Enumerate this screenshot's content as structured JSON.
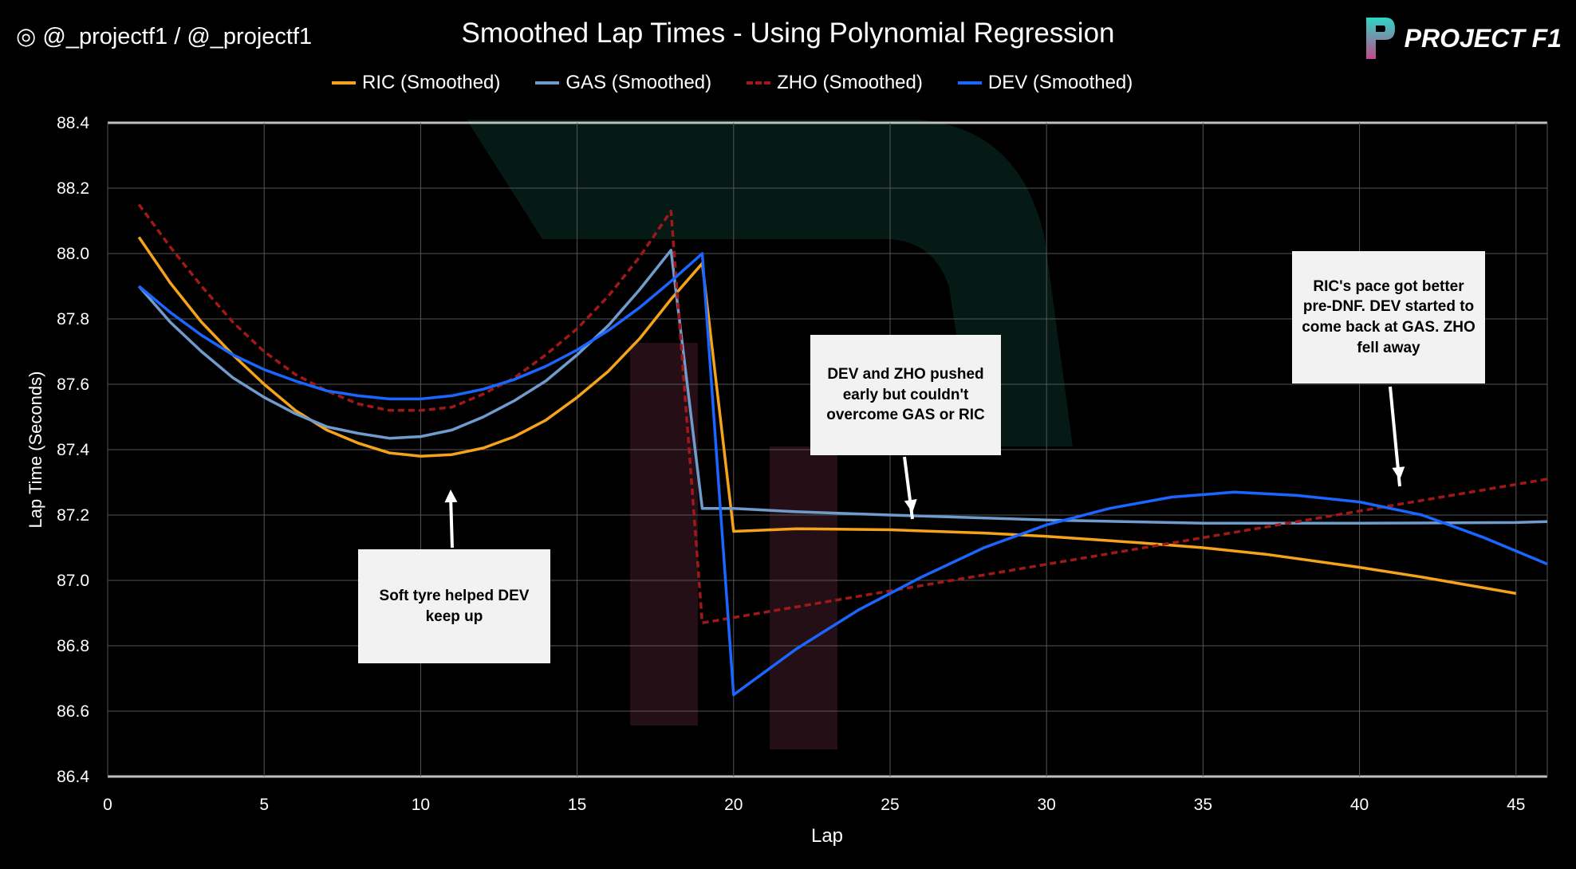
{
  "header": {
    "handle": "@_projectf1 / @_projectf1",
    "instagram_icon": "instagram-icon",
    "twitter_icon": "twitter-icon",
    "logo_text": "PROJECT F1"
  },
  "chart_data": {
    "type": "line",
    "title": "Smoothed Lap Times - Using Polynomial Regression",
    "xlabel": "Lap",
    "ylabel": "Lap Time (Seconds)",
    "xlim": [
      0,
      46
    ],
    "ylim": [
      86.4,
      88.4
    ],
    "xticks": [
      "0",
      "5",
      "10",
      "15",
      "20",
      "25",
      "30",
      "35",
      "40",
      "45"
    ],
    "yticks": [
      "86.4",
      "86.6",
      "86.8",
      "87.0",
      "87.2",
      "87.4",
      "87.6",
      "87.8",
      "88.0",
      "88.2",
      "88.4"
    ],
    "grid": true,
    "legend_position": "top",
    "series": [
      {
        "name": "RIC (Smoothed)",
        "color": "#f5a31a",
        "dash": false,
        "x": [
          1,
          2,
          3,
          4,
          5,
          6,
          7,
          8,
          9,
          10,
          11,
          12,
          13,
          14,
          15,
          16,
          17,
          18,
          19,
          20,
          22,
          25,
          28,
          30,
          33,
          35,
          37,
          40,
          42,
          45
        ],
        "y": [
          88.05,
          87.91,
          87.79,
          87.69,
          87.6,
          87.52,
          87.46,
          87.42,
          87.39,
          87.38,
          87.385,
          87.405,
          87.44,
          87.49,
          87.56,
          87.64,
          87.74,
          87.86,
          87.97,
          87.15,
          87.158,
          87.155,
          87.145,
          87.135,
          87.115,
          87.1,
          87.08,
          87.04,
          87.01,
          86.96
        ]
      },
      {
        "name": "GAS (Smoothed)",
        "color": "#6f9ccc",
        "dash": false,
        "x": [
          1,
          2,
          3,
          4,
          5,
          6,
          7,
          8,
          9,
          10,
          11,
          12,
          13,
          14,
          15,
          16,
          17,
          18,
          19,
          20,
          22,
          25,
          30,
          35,
          40,
          45,
          46
        ],
        "y": [
          87.9,
          87.79,
          87.7,
          87.62,
          87.56,
          87.51,
          87.47,
          87.45,
          87.435,
          87.44,
          87.46,
          87.5,
          87.55,
          87.61,
          87.69,
          87.78,
          87.89,
          88.01,
          87.22,
          87.22,
          87.21,
          87.2,
          87.185,
          87.175,
          87.175,
          87.177,
          87.18
        ]
      },
      {
        "name": "ZHO (Smoothed)",
        "color": "#a01818",
        "dash": true,
        "x": [
          1,
          2,
          3,
          4,
          5,
          6,
          7,
          8,
          9,
          10,
          11,
          12,
          13,
          14,
          15,
          16,
          17,
          18,
          19,
          46
        ],
        "y": [
          88.15,
          88.02,
          87.9,
          87.79,
          87.7,
          87.63,
          87.58,
          87.54,
          87.52,
          87.52,
          87.53,
          87.57,
          87.62,
          87.69,
          87.77,
          87.87,
          87.99,
          88.13,
          86.87,
          87.31
        ]
      },
      {
        "name": "DEV (Smoothed)",
        "color": "#1a66ff",
        "dash": false,
        "x": [
          1,
          2,
          3,
          4,
          5,
          6,
          7,
          8,
          9,
          10,
          11,
          12,
          13,
          14,
          15,
          16,
          17,
          18,
          19,
          20,
          22,
          24,
          26,
          28,
          30,
          32,
          34,
          36,
          38,
          40,
          42,
          44,
          46
        ],
        "y": [
          87.9,
          87.82,
          87.75,
          87.69,
          87.645,
          87.61,
          87.58,
          87.565,
          87.555,
          87.555,
          87.565,
          87.585,
          87.615,
          87.655,
          87.705,
          87.765,
          87.835,
          87.915,
          88.0,
          86.65,
          86.79,
          86.91,
          87.01,
          87.1,
          87.17,
          87.22,
          87.255,
          87.27,
          87.26,
          87.24,
          87.2,
          87.13,
          87.05
        ]
      }
    ],
    "annotations": [
      {
        "text": "Soft tyre helped DEV keep up"
      },
      {
        "text": "DEV and ZHO pushed early but couldn't overcome GAS or RIC"
      },
      {
        "text": "RIC's pace got better pre-DNF. DEV started to come back at GAS. ZHO fell away"
      }
    ]
  }
}
